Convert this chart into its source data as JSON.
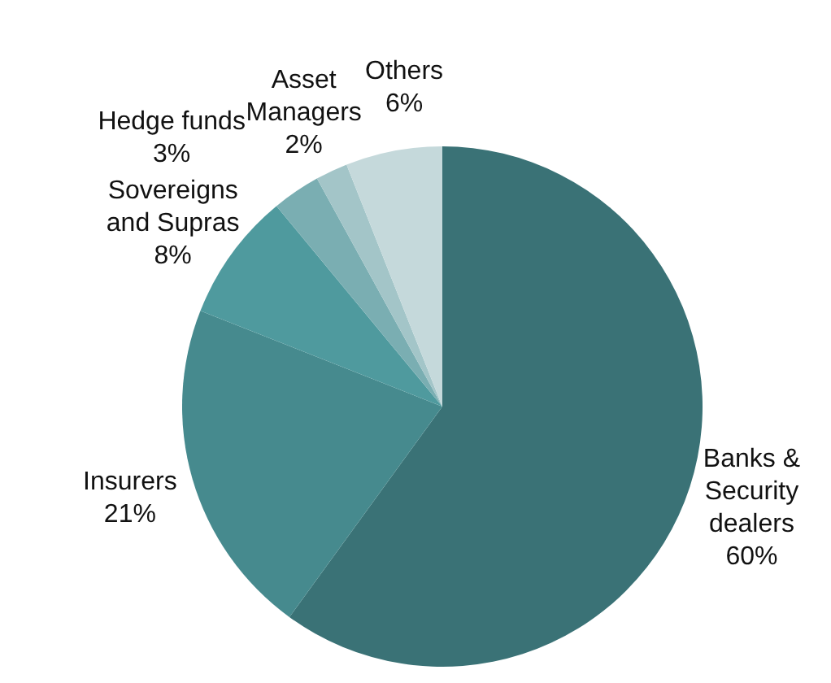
{
  "chart_data": {
    "type": "pie",
    "categories": [
      "Banks & Security dealers",
      "Insurers",
      "Sovereigns and Supras",
      "Hedge funds",
      "Asset Managers",
      "Others"
    ],
    "values": [
      60,
      21,
      8,
      3,
      2,
      6
    ],
    "value_labels": [
      "60%",
      "21%",
      "8%",
      "3%",
      "2%",
      "6%"
    ],
    "colors": [
      "#3a7276",
      "#468a8e",
      "#4f9a9e",
      "#7aaeb2",
      "#a3c5c8",
      "#c5d9db"
    ]
  }
}
